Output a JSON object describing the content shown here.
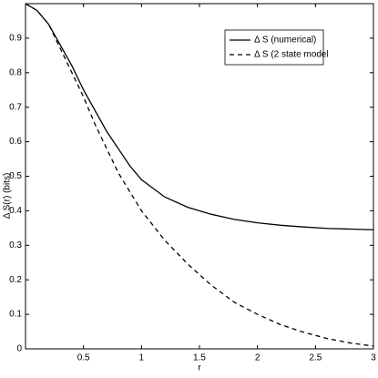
{
  "chart_data": {
    "type": "line",
    "xlabel": "r",
    "ylabel": "Δ S(r) (bits)",
    "x": [
      0,
      0.1,
      0.2,
      0.3,
      0.4,
      0.5,
      0.6,
      0.7,
      0.8,
      0.9,
      1.0,
      1.2,
      1.4,
      1.6,
      1.8,
      2.0,
      2.2,
      2.4,
      2.6,
      2.8,
      3.0
    ],
    "series": [
      {
        "name": "Δ S (numerical)",
        "color": "#000000",
        "dash": false,
        "values": [
          1.0,
          0.98,
          0.94,
          0.88,
          0.82,
          0.75,
          0.69,
          0.63,
          0.58,
          0.53,
          0.49,
          0.44,
          0.41,
          0.39,
          0.375,
          0.365,
          0.358,
          0.353,
          0.349,
          0.347,
          0.345
        ]
      },
      {
        "name": "Δ S (2 state model",
        "color": "#000000",
        "dash": true,
        "values": [
          1.0,
          0.98,
          0.94,
          0.87,
          0.8,
          0.73,
          0.65,
          0.58,
          0.51,
          0.455,
          0.4,
          0.315,
          0.245,
          0.185,
          0.135,
          0.1,
          0.07,
          0.048,
          0.03,
          0.017,
          0.008
        ]
      }
    ],
    "xlim": [
      0,
      3
    ],
    "ylim": [
      0,
      1
    ],
    "xticks": [
      0.5,
      1,
      1.5,
      2,
      2.5,
      3
    ],
    "yticks": [
      0,
      0.1,
      0.2,
      0.3,
      0.4,
      0.5,
      0.6,
      0.7,
      0.8,
      0.9
    ],
    "grid": false,
    "legend": "upper right"
  }
}
